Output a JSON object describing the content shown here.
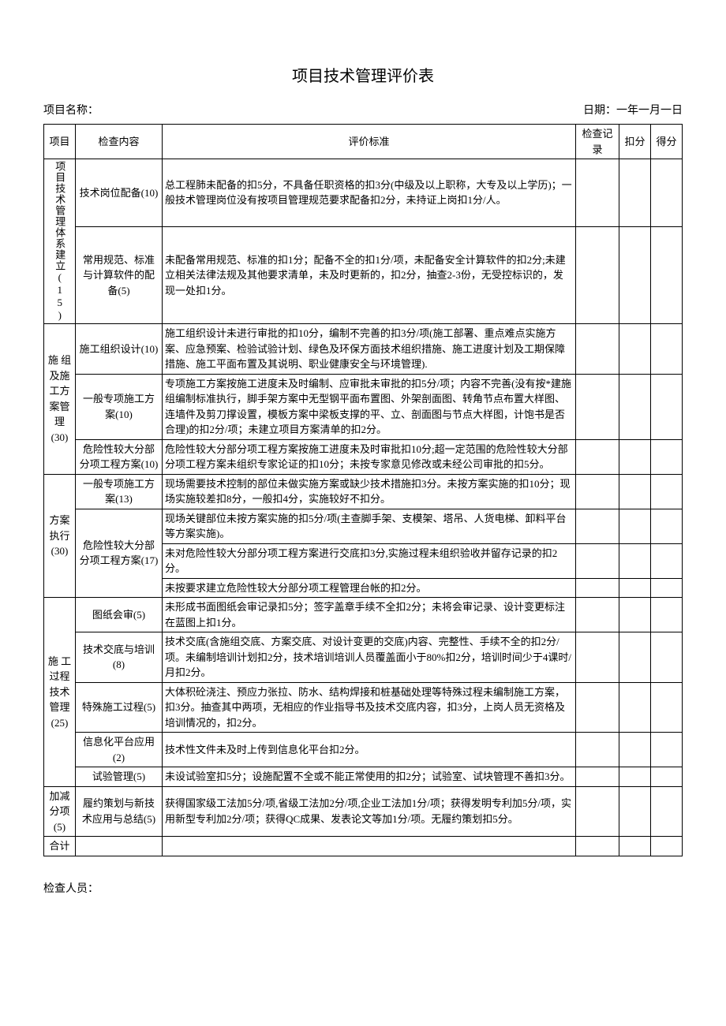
{
  "title": "项目技术管理评价表",
  "header": {
    "projectLabel": "项目名称：",
    "dateLabel": "日期：一年一月一日"
  },
  "columns": {
    "project": "项目",
    "content": "检查内容",
    "standard": "评价标准",
    "record": "检查记录",
    "deduct": "扣分",
    "score": "得分"
  },
  "sections": [
    {
      "project": "项目技术管理体系建立(15)",
      "rows": [
        {
          "content": "技术岗位配备(10)",
          "standard": "总工程肺未配备的扣5分，不具备任职资格的扣3分(中级及以上职称，大专及以上学历)；一般技术管理岗位没有按项目管理规范要求配备扣2分，未持证上岗扣1分/人。"
        },
        {
          "content": "常用规范、标准与计算软件的配备(5)",
          "standard": "未配备常用规范、标准的扣1分；配备不全的扣1分/项，未配备安全计算软件的扣2分;未建立相关法律法规及其他要求清单，未及时更新的，扣2分，抽查2-3份，无受控标识的，发现一处扣1分。"
        }
      ]
    },
    {
      "project": "施 组及施工方案管理(30)",
      "rows": [
        {
          "content": "施工组织设计(10)",
          "standard": "施工组织设计未进行审批的扣10分，编制不完善的扣3分/项(施工部署、重点难点实施方案、应急预案、检验试验计划、绿色及环保方面技术组织措施、施工进度计划及工期保障措施、施工平面布置及其说明、职业健康安全与环境管理)."
        },
        {
          "content": "一般专项施工方案(10)",
          "standard": "专项施工方案按施工进度未及时编制、应审批未审批的扣5分/项；内容不完善(没有按*建施组编制标准执行，脚手架方案中无型钢平面布置图、外架剖面图、转角节点布置大样图、连墙件及剪刀撑设置，模板方案中梁板支撑的平、立、剖面图与节点大样图，计饱书是否合理)的扣2分/项；未建立项目方案清单的扣2分。"
        },
        {
          "content": "危险性较大分部分项工程方案(10)",
          "standard": "危险性较大分部分项工程方案按施工进度未及时审批扣10分;超一定范围的危险性较大分部分项工程方案未组织专家论证的扣10分；未按专家意见修改或未经公司审批的扣5分。"
        }
      ]
    },
    {
      "project": "方案执行(30)",
      "rows": [
        {
          "content": "一般专项施工方案(13)",
          "standard": "现场需要技术控制的部位未做实施方案或缺少技术措施扣3分。未按方案实施的扣10分；现场实施较差扣8分，一般扣4分，实施较好不扣分。",
          "contentRowspan": 1
        },
        {
          "content": "危险性较大分部分项工程方案(17)",
          "contentRowspan": 3,
          "standard": "现场关键部位未按方案实施的扣5分/项(主查脚手架、支模架、塔吊、人货电梯、卸料平台等方案实施)。"
        },
        {
          "standard": "未对危险性较大分部分项工程方案进行交底扣3分,实施过程未组织验收并留存记录的扣2分。"
        },
        {
          "standard": "未按要求建立危险性较大分部分项工程管理台帐的扣2分。"
        }
      ]
    },
    {
      "project": "施 工过程技术管理(25)",
      "rows": [
        {
          "content": "图纸会审(5)",
          "standard": "未形成书面图纸会审记录扣5分；签字盖章手续不全扣2分；未将会审记录、设计变更标注在蓝图上扣1分。"
        },
        {
          "content": "技术交底与培训(8)",
          "standard": "技术交底(含施组交底、方案交底、对设计变更的交底)内容、完整性、手续不全的扣2分/项。未编制培训计划扣2分，技术培训培训人员覆盖面小于80%扣2分，培训时间少于4课时/月扣2分。"
        },
        {
          "content": "特殊施工过程(5)",
          "standard": "大体积砼浇注、预应力张拉、防水、结构焊接和桩基础处理等特殊过程未编制施工方案，扣3分。抽查其中两项，无相应的作业指导书及技术交底内容，扣3分，上岗人员无资格及培训情况的，扣2分。"
        },
        {
          "content": "信息化平台应用(2)",
          "standard": "技术性文件未及时上传到信息化平台扣2分。"
        },
        {
          "content": "试验管理(5)",
          "standard": "未设试验室扣5分；设施配置不全或不能正常使用的扣2分；试验室、试块管理不善扣3分。"
        }
      ]
    },
    {
      "project": "加减分项(5)",
      "rows": [
        {
          "content": "履约策划与新技术应用与总结(5)",
          "standard": "获得国家级工法加5分/项,省级工法加2分/项,企业工法加1分/项；获得发明专利加5分/项，实用新型专利加2分/项；获得QC成果、发表论文等加1分/项。无履约策划扣5分。"
        }
      ]
    }
  ],
  "total": "合计",
  "footer": "检查人员："
}
